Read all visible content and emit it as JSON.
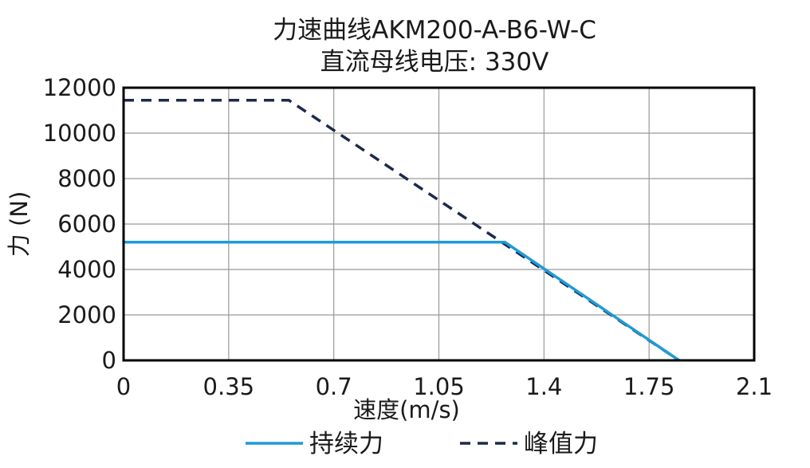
{
  "chart_data": {
    "type": "line",
    "title": "力速曲线AKM200-A-B6-W-C",
    "subtitle": "直流母线电压: 330V",
    "xlabel": "速度(m/s)",
    "ylabel": "力 (N)",
    "xlim": [
      0,
      2.1
    ],
    "ylim": [
      0,
      12000
    ],
    "x_ticks": [
      "0",
      "0.35",
      "0.7",
      "1.05",
      "1.4",
      "1.75",
      "2.1"
    ],
    "y_ticks": [
      "0",
      "2000",
      "4000",
      "6000",
      "8000",
      "10000",
      "12000"
    ],
    "grid": true,
    "legend_position": "bottom",
    "series": [
      {
        "name": "持续力",
        "color": "#1f9bd7",
        "style": "solid",
        "x": [
          0,
          1.27,
          1.85
        ],
        "y": [
          5200,
          5200,
          0
        ]
      },
      {
        "name": "峰值力",
        "color": "#1c2a4a",
        "style": "dashed",
        "x": [
          0,
          0.55,
          1.85
        ],
        "y": [
          11450,
          11450,
          0
        ]
      }
    ]
  }
}
